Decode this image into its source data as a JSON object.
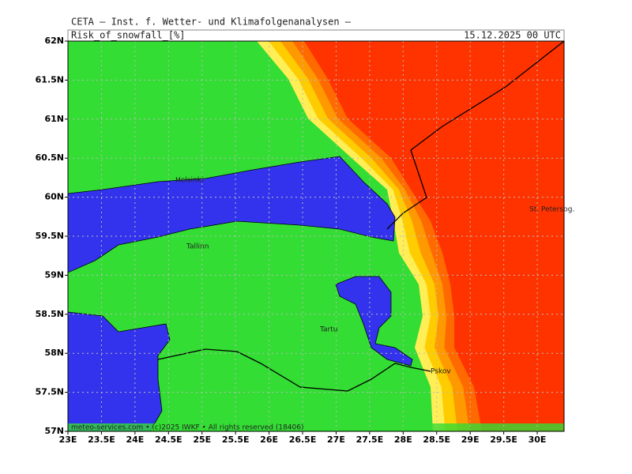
{
  "header": {
    "institute": "CETA  — Inst. f. Wetter- und Klimafolgenanalysen —",
    "parameter": "Risk_of_snowfall_[%]",
    "valid_time": "15.12.2025 00 UTC"
  },
  "map": {
    "lon_range": [
      23,
      30.4
    ],
    "lat_range": [
      57,
      62
    ],
    "lon_ticks": [
      {
        "value": 23,
        "label": "23E"
      },
      {
        "value": 23.5,
        "label": "23.5E"
      },
      {
        "value": 24,
        "label": "24E"
      },
      {
        "value": 24.5,
        "label": "24.5E"
      },
      {
        "value": 25,
        "label": "25E"
      },
      {
        "value": 25.5,
        "label": "25.5E"
      },
      {
        "value": 26,
        "label": "26E"
      },
      {
        "value": 26.5,
        "label": "26.5E"
      },
      {
        "value": 27,
        "label": "27E"
      },
      {
        "value": 27.5,
        "label": "27.5E"
      },
      {
        "value": 28,
        "label": "28E"
      },
      {
        "value": 28.5,
        "label": "28.5E"
      },
      {
        "value": 29,
        "label": "29E"
      },
      {
        "value": 29.5,
        "label": "29.5E"
      },
      {
        "value": 30,
        "label": "30E"
      }
    ],
    "lat_ticks": [
      {
        "value": 62,
        "label": "62N"
      },
      {
        "value": 61.5,
        "label": "61.5N"
      },
      {
        "value": 61,
        "label": "61N"
      },
      {
        "value": 60.5,
        "label": "60.5N"
      },
      {
        "value": 60,
        "label": "60N"
      },
      {
        "value": 59.5,
        "label": "59.5N"
      },
      {
        "value": 59,
        "label": "59N"
      },
      {
        "value": 58.5,
        "label": "58.5N"
      },
      {
        "value": 58,
        "label": "58N"
      },
      {
        "value": 57.5,
        "label": "57.5N"
      },
      {
        "value": 57,
        "label": "57N"
      }
    ],
    "cities": [
      "Helsinki",
      "Tallinn",
      "Tartu",
      "Pskov",
      "St. Petersbg."
    ],
    "footer": "meteo-services.com • (c)2025 IWKF • All rights reserved (18406)"
  }
}
